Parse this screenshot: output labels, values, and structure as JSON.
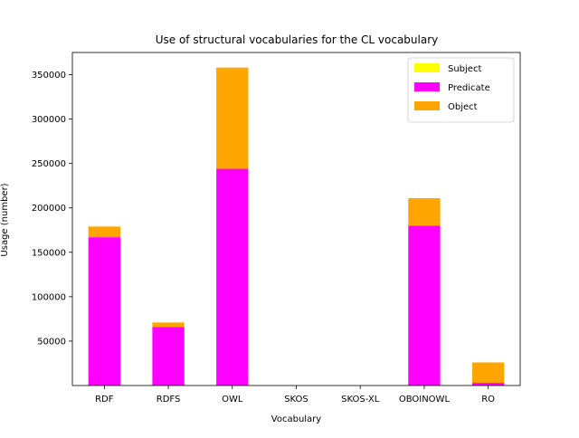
{
  "chart_data": {
    "type": "bar",
    "stacked": true,
    "title": "Use of structural vocabularies for the CL vocabulary",
    "xlabel": "Vocabulary",
    "ylabel": "Usage (number)",
    "categories": [
      "RDF",
      "RDFS",
      "OWL",
      "SKOS",
      "SKOS-XL",
      "OBOINOWL",
      "RO"
    ],
    "series": [
      {
        "name": "Subject",
        "color": "#ffff00",
        "values": [
          0,
          0,
          0,
          0,
          0,
          0,
          0
        ]
      },
      {
        "name": "Predicate",
        "color": "#ff00ff",
        "values": [
          167000,
          66000,
          244000,
          0,
          0,
          180000,
          3000
        ]
      },
      {
        "name": "Object",
        "color": "#ffa500",
        "values": [
          12000,
          5000,
          114000,
          0,
          0,
          31000,
          23000
        ]
      }
    ],
    "ylim": [
      0,
      375000
    ],
    "yticks": [
      50000,
      100000,
      150000,
      200000,
      250000,
      300000,
      350000
    ],
    "ytick_labels": [
      "50000",
      "100000",
      "150000",
      "200000",
      "250000",
      "300000",
      "350000"
    ],
    "grid": false,
    "legend_position": "top-right"
  }
}
